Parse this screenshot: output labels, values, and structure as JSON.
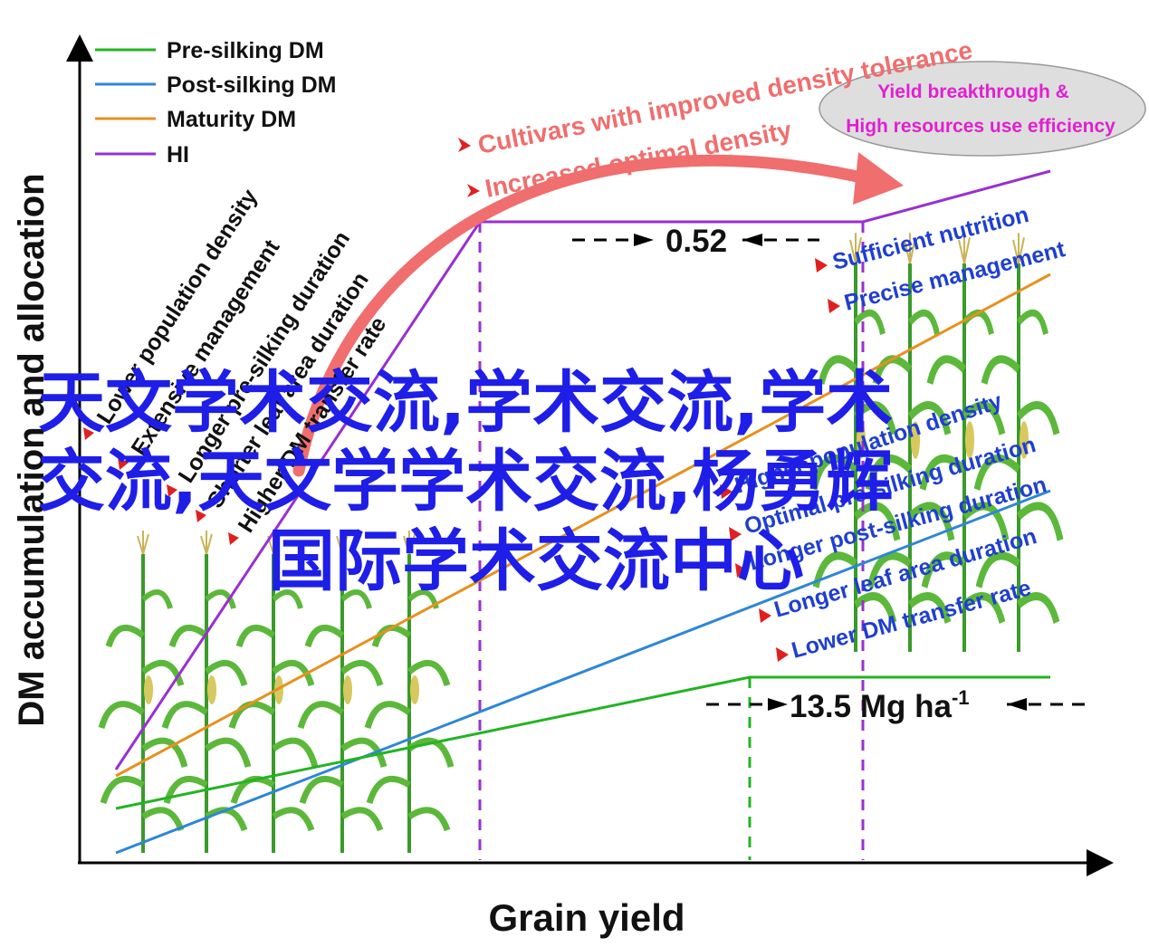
{
  "axes": {
    "xlabel": "Grain yield",
    "ylabel": "DM accumulation and allocation"
  },
  "legend": {
    "items": [
      {
        "label": "Pre-silking DM",
        "color": "#22b422"
      },
      {
        "label": "Post-silking DM",
        "color": "#2e86d6"
      },
      {
        "label": "Maturity DM",
        "color": "#e8901e"
      },
      {
        "label": "HI",
        "color": "#9a2fd0"
      }
    ]
  },
  "left_factors": [
    "Lower population density",
    "Extensive management",
    "Longer pre-silking duration",
    "Shorter leaf area duration",
    "Higher DM transfer rate"
  ],
  "top_arrow": {
    "labels": [
      "Cultivars with improved density tolerance",
      "Increased optimal density"
    ],
    "color": "#f06e6e"
  },
  "goal_ellipse": {
    "line1": "Yield breakthrough &",
    "line2": "High resources use efficiency",
    "text_color": "#e020d0",
    "fill": "#dedede"
  },
  "annotations": {
    "hi_value": "0.52",
    "yield_value_base": "13.5 Mg ha",
    "yield_value_sup": "-1"
  },
  "right_factors": [
    "Sufficient nutrition",
    "Precise management",
    "Higher population density",
    "Optimal pre-silking duration",
    "Longer post-silking duration",
    "Longer leaf area duration",
    "Lower DM transfer rate"
  ],
  "watermark": {
    "line1": "天文学术交流,学术交流,学术",
    "line2": "交流,天文学学术交流,杨勇辉",
    "line3": "国际学术交流中心",
    "color": "#1e1ee8"
  }
}
